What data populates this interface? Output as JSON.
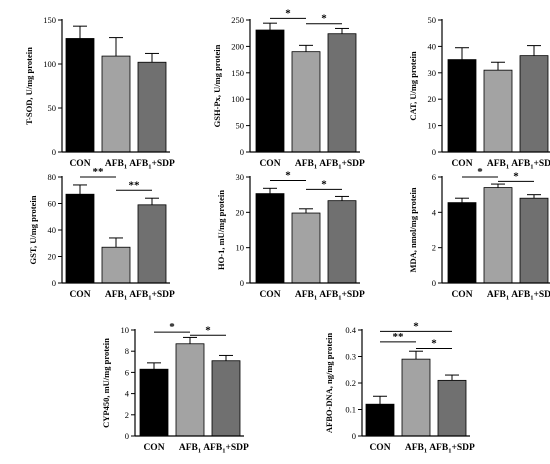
{
  "colors": {
    "con": "#000000",
    "afb": "#a3a3a3",
    "sdp": "#707070",
    "axis": "#000000"
  },
  "chart_data": [
    {
      "type": "bar",
      "categories": [
        "CON",
        "AFB1",
        "AFB1+SDP"
      ],
      "values": [
        129,
        109,
        102
      ],
      "errors": [
        14,
        21,
        10
      ],
      "ylabel": "T-SOD, U/mg protein",
      "ylim": [
        0,
        150
      ],
      "yticks": [
        0,
        50,
        100,
        150
      ],
      "significance": []
    },
    {
      "type": "bar",
      "categories": [
        "CON",
        "AFB1",
        "AFB1+SDP"
      ],
      "values": [
        231,
        190,
        224
      ],
      "errors": [
        13,
        12,
        10
      ],
      "ylabel": "GSH-Px, U/mg protein",
      "ylim": [
        0,
        250
      ],
      "yticks": [
        0,
        50,
        100,
        150,
        200,
        250
      ],
      "significance": [
        {
          "from": 0,
          "to": 1,
          "label": "*",
          "y": 253
        },
        {
          "from": 1,
          "to": 2,
          "label": "*",
          "y": 243
        }
      ]
    },
    {
      "type": "bar",
      "categories": [
        "CON",
        "AFB1",
        "AFB1+SDP"
      ],
      "values": [
        35,
        31,
        36.5
      ],
      "errors": [
        4.5,
        3,
        3.8
      ],
      "ylabel": "CAT, U/mg protein",
      "ylim": [
        0,
        50
      ],
      "yticks": [
        0,
        10,
        20,
        30,
        40,
        50
      ],
      "significance": []
    },
    {
      "type": "bar",
      "categories": [
        "CON",
        "AFB1",
        "AFB1+SDP"
      ],
      "values": [
        67,
        27,
        59
      ],
      "errors": [
        7,
        7,
        5
      ],
      "ylabel": "GST, U/mg protein",
      "ylim": [
        0,
        80
      ],
      "yticks": [
        0,
        20,
        40,
        60,
        80
      ],
      "significance": [
        {
          "from": 0,
          "to": 1,
          "label": "**",
          "y": 80
        },
        {
          "from": 1,
          "to": 2,
          "label": "**",
          "y": 70
        }
      ]
    },
    {
      "type": "bar",
      "categories": [
        "CON",
        "AFB1",
        "AFB1+SDP"
      ],
      "values": [
        25.3,
        19.8,
        23.3
      ],
      "errors": [
        1.5,
        1.2,
        1.2
      ],
      "ylabel": "HO-1, mU/mg protein",
      "ylim": [
        0,
        30
      ],
      "yticks": [
        0,
        10,
        20,
        30
      ],
      "significance": [
        {
          "from": 0,
          "to": 1,
          "label": "*",
          "y": 29
        },
        {
          "from": 1,
          "to": 2,
          "label": "*",
          "y": 26.5
        }
      ]
    },
    {
      "type": "bar",
      "categories": [
        "CON",
        "AFB1",
        "AFB1+SDP"
      ],
      "values": [
        4.55,
        5.4,
        4.8
      ],
      "errors": [
        0.25,
        0.2,
        0.2
      ],
      "ylabel": "MDA, nmol/mg protein",
      "ylim": [
        0,
        6
      ],
      "yticks": [
        0,
        2,
        4,
        6
      ],
      "significance": [
        {
          "from": 0,
          "to": 1,
          "label": "*",
          "y": 6.0
        },
        {
          "from": 1,
          "to": 2,
          "label": "*",
          "y": 5.75
        }
      ]
    },
    {
      "type": "bar",
      "categories": [
        "CON",
        "AFB1",
        "AFB1+SDP"
      ],
      "values": [
        6.3,
        8.7,
        7.1
      ],
      "errors": [
        0.6,
        0.6,
        0.5
      ],
      "ylabel": "CYP450, mU/mg protein",
      "ylim": [
        0,
        10
      ],
      "yticks": [
        0,
        2,
        4,
        6,
        8,
        10
      ],
      "significance": [
        {
          "from": 0,
          "to": 1,
          "label": "*",
          "y": 9.8
        },
        {
          "from": 1,
          "to": 2,
          "label": "*",
          "y": 9.5
        }
      ]
    },
    {
      "type": "bar",
      "categories": [
        "CON",
        "AFB1",
        "AFB1+SDP"
      ],
      "values": [
        0.12,
        0.29,
        0.21
      ],
      "errors": [
        0.03,
        0.03,
        0.02
      ],
      "ylabel": "AFBO-DNA, ng/mg protein",
      "ylim": [
        0,
        0.4
      ],
      "yticks": [
        0,
        0.1,
        0.2,
        0.3,
        0.4
      ],
      "significance": [
        {
          "from": 0,
          "to": 2,
          "label": "*",
          "y": 0.395
        },
        {
          "from": 0,
          "to": 1,
          "label": "**",
          "y": 0.355
        },
        {
          "from": 1,
          "to": 2,
          "label": "*",
          "y": 0.33
        }
      ]
    }
  ]
}
